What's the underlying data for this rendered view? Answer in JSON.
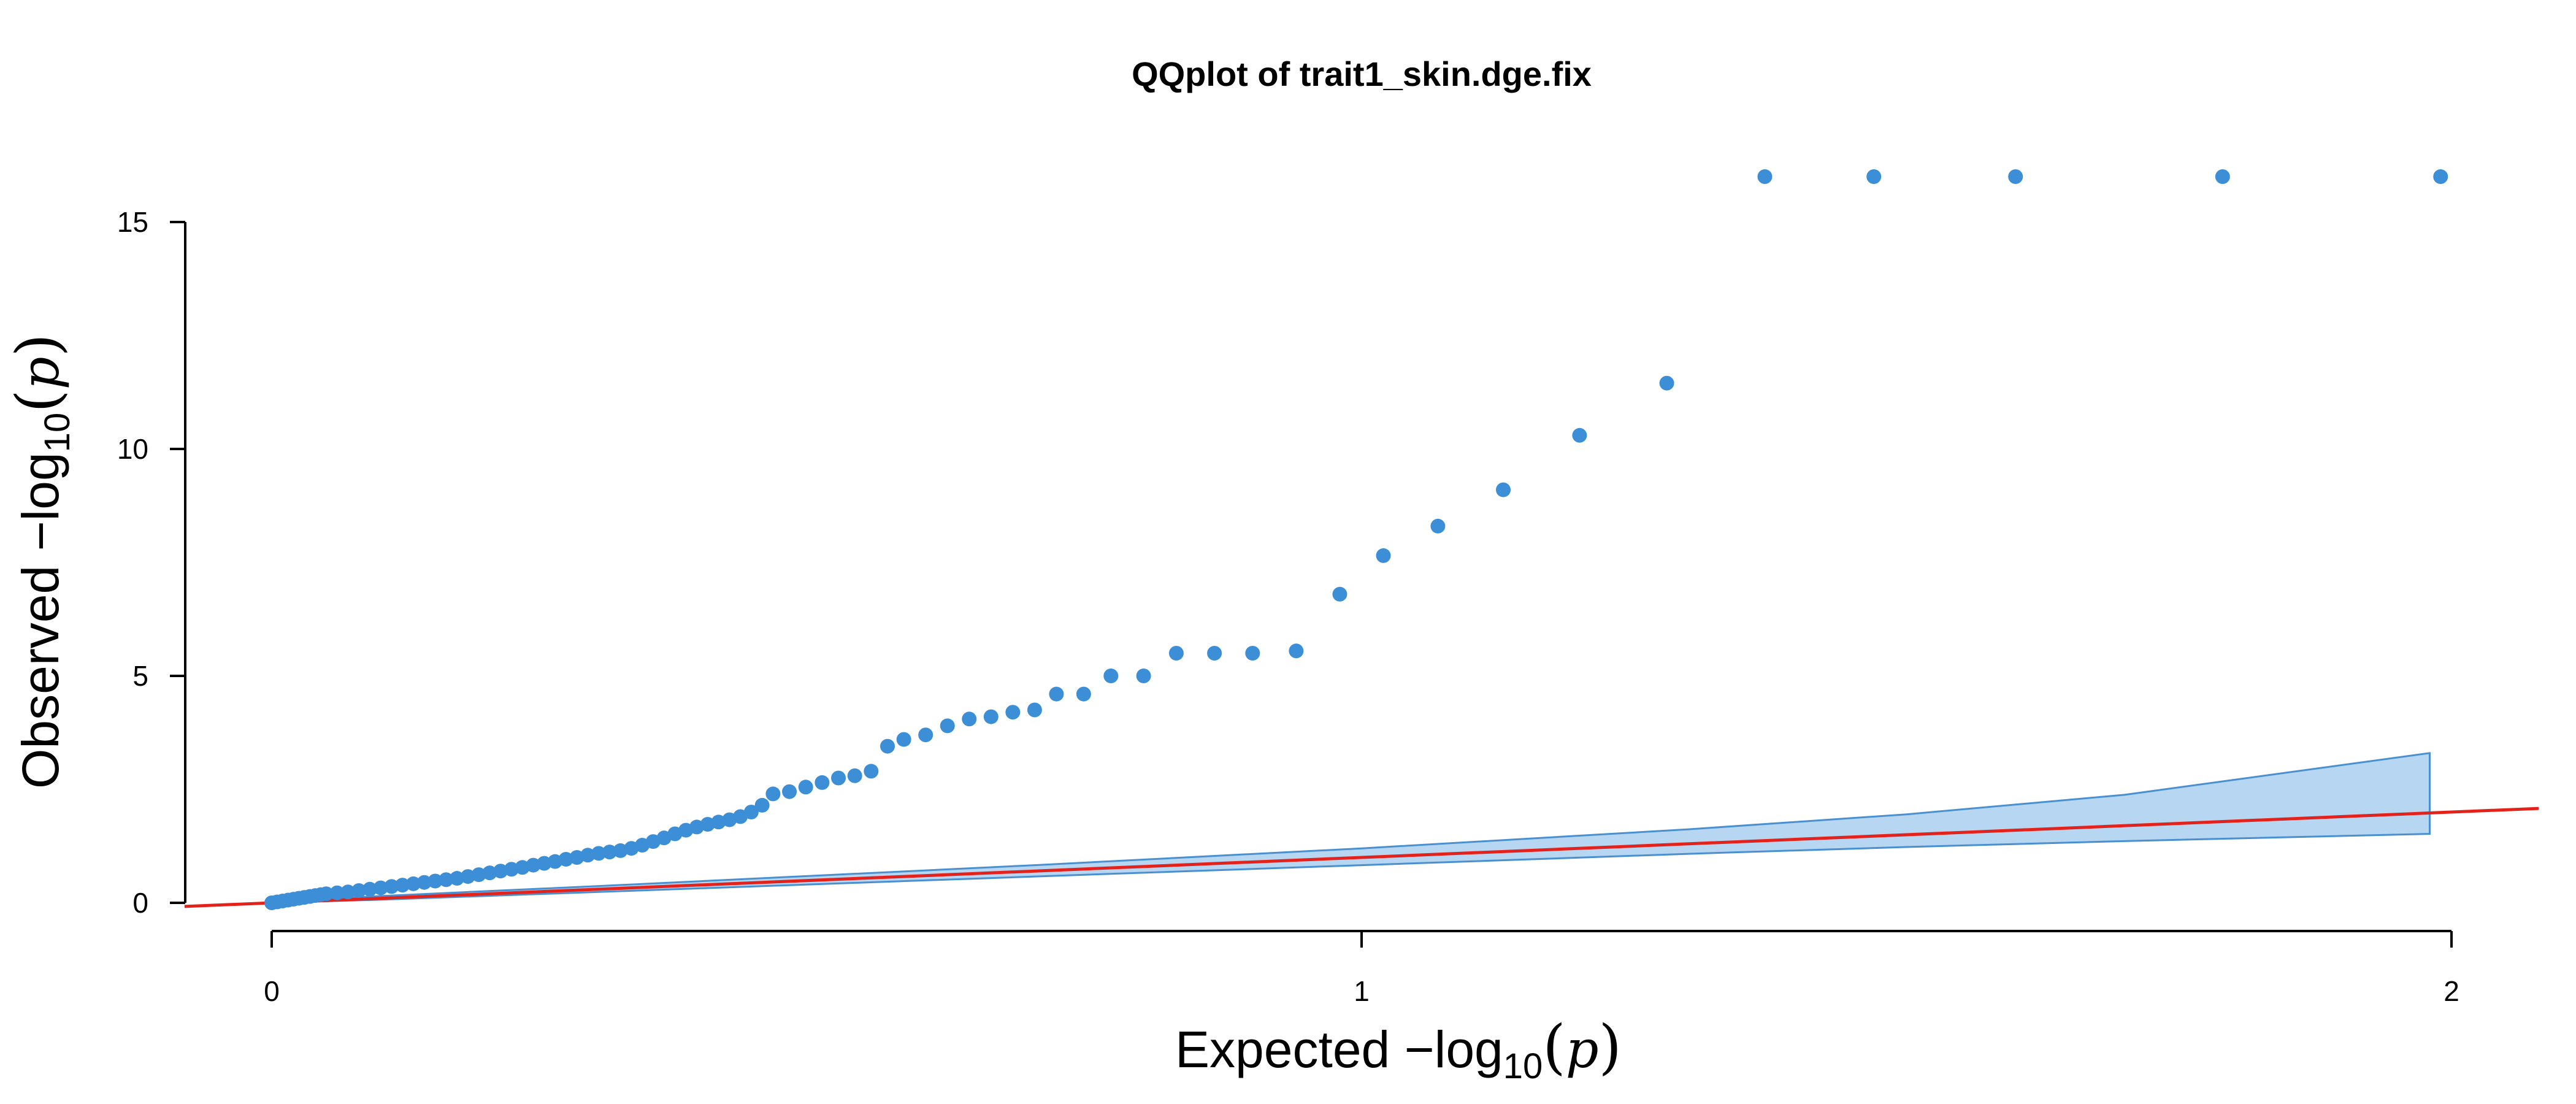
{
  "chart_data": {
    "type": "scatter",
    "title": "QQplot of trait1_skin.dge.fix",
    "xlabel": {
      "prefix": "Expected  −log",
      "sub": "10",
      "open": "(",
      "var": "p",
      "close": ")"
    },
    "ylabel": {
      "prefix": "Observed  −log",
      "sub": "10",
      "open": "(",
      "var": "p",
      "close": ")"
    },
    "xlim": [
      0,
      2
    ],
    "ylim": [
      0,
      15
    ],
    "x_ticks": [
      {
        "value": 0,
        "label": "0"
      },
      {
        "value": 1,
        "label": "1"
      },
      {
        "value": 2,
        "label": "2"
      }
    ],
    "y_ticks": [
      {
        "value": 0,
        "label": "0"
      },
      {
        "value": 5,
        "label": "5"
      },
      {
        "value": 10,
        "label": "10"
      },
      {
        "value": 15,
        "label": "15"
      }
    ],
    "grid": false,
    "colors": {
      "points": "#3c8fd6",
      "band_fill": "#b6d6f2",
      "band_stroke": "#4a90d0",
      "reference_line": "#e3231b"
    },
    "reference_line": {
      "slope": 1,
      "intercept": 0
    },
    "confidence_band": {
      "x": [
        0.0,
        0.1,
        0.3,
        0.5,
        0.7,
        1.0,
        1.3,
        1.5,
        1.7,
        1.98
      ],
      "lower": [
        0.0,
        0.07,
        0.24,
        0.41,
        0.58,
        0.83,
        1.08,
        1.23,
        1.36,
        1.52
      ],
      "upper": [
        0.03,
        0.15,
        0.37,
        0.6,
        0.83,
        1.2,
        1.62,
        1.95,
        2.38,
        3.3
      ]
    },
    "points": {
      "x": [
        0.0,
        0.005,
        0.01,
        0.015,
        0.02,
        0.025,
        0.03,
        0.035,
        0.04,
        0.045,
        0.05,
        0.06,
        0.07,
        0.08,
        0.09,
        0.1,
        0.11,
        0.12,
        0.13,
        0.14,
        0.15,
        0.16,
        0.17,
        0.18,
        0.19,
        0.2,
        0.21,
        0.22,
        0.23,
        0.24,
        0.25,
        0.26,
        0.27,
        0.28,
        0.29,
        0.3,
        0.31,
        0.32,
        0.33,
        0.34,
        0.35,
        0.36,
        0.37,
        0.38,
        0.39,
        0.4,
        0.41,
        0.42,
        0.43,
        0.44,
        0.45,
        0.46,
        0.475,
        0.49,
        0.505,
        0.52,
        0.535,
        0.55,
        0.565,
        0.58,
        0.6,
        0.62,
        0.64,
        0.66,
        0.68,
        0.7,
        0.72,
        0.745,
        0.77,
        0.8,
        0.83,
        0.865,
        0.9,
        0.94,
        0.98,
        1.02,
        1.07,
        1.13,
        1.2,
        1.28,
        1.37,
        1.47,
        1.6,
        1.79,
        1.99
      ],
      "y": [
        0.0,
        0.02,
        0.04,
        0.06,
        0.08,
        0.1,
        0.12,
        0.14,
        0.16,
        0.18,
        0.2,
        0.22,
        0.24,
        0.27,
        0.3,
        0.33,
        0.36,
        0.39,
        0.42,
        0.45,
        0.48,
        0.51,
        0.54,
        0.58,
        0.62,
        0.66,
        0.7,
        0.74,
        0.78,
        0.83,
        0.87,
        0.91,
        0.96,
        1.0,
        1.05,
        1.09,
        1.12,
        1.15,
        1.2,
        1.27,
        1.35,
        1.43,
        1.52,
        1.6,
        1.67,
        1.73,
        1.78,
        1.83,
        1.9,
        2.0,
        2.15,
        2.4,
        2.45,
        2.55,
        2.65,
        2.75,
        2.8,
        2.9,
        3.45,
        3.6,
        3.7,
        3.9,
        4.05,
        4.1,
        4.2,
        4.25,
        4.6,
        4.6,
        5.0,
        5.0,
        5.5,
        5.5,
        5.5,
        5.55,
        6.8,
        7.65,
        8.3,
        9.1,
        10.3,
        11.45,
        16.0,
        16.0,
        16.0,
        16.0,
        16.0
      ]
    }
  }
}
